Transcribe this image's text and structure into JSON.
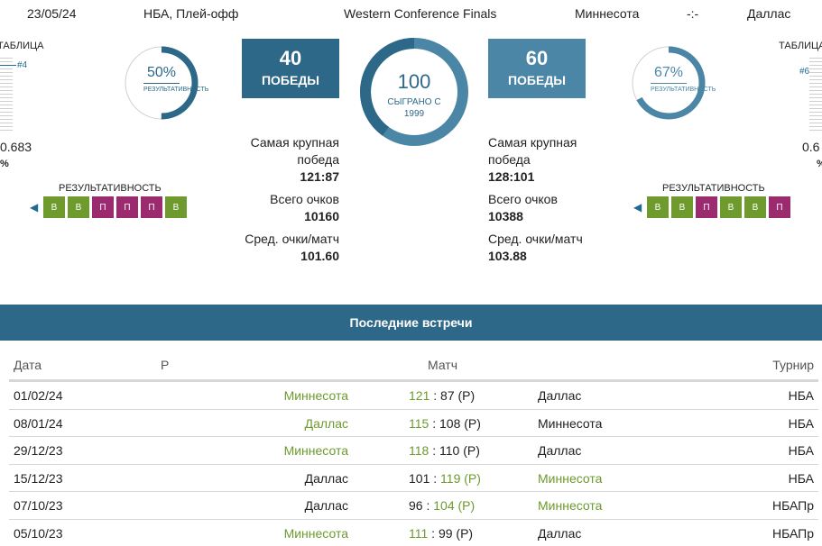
{
  "header": {
    "date": "23/05/24",
    "league": "НБА, Плей-офф",
    "stage": "Western Conference Finals",
    "home_team": "Миннесота",
    "score": "-:-",
    "away_team": "Даллас"
  },
  "left_side": {
    "table_label": "ТАБЛИЦА",
    "rank": "#4",
    "value": "0.683",
    "pct_sign": "%",
    "gauge_value": "50%",
    "gauge_fill": 0.5,
    "gauge_label": "РЕЗУЛЬТАТИВНОСТЬ",
    "form_title": "РЕЗУЛЬТАТИВНОСТЬ",
    "form": [
      "В",
      "В",
      "П",
      "П",
      "П",
      "В"
    ]
  },
  "right_side": {
    "table_label": "ТАБЛИЦА",
    "rank": "#6",
    "value": "0.6",
    "pct_sign": "%",
    "gauge_value": "67%",
    "gauge_fill": 0.67,
    "gauge_label": "РЕЗУЛЬТАТИВНОСТЬ",
    "form_title": "РЕЗУЛЬТАТИВНОСТЬ",
    "form": [
      "В",
      "В",
      "П",
      "В",
      "В",
      "П"
    ]
  },
  "center": {
    "home_wins": "40",
    "home_wins_label": "ПОБЕДЫ",
    "away_wins": "60",
    "away_wins_label": "ПОБЕДЫ",
    "played": "100",
    "played_label_1": "СЫГРАНО С",
    "played_label_2": "1999",
    "played_home_share": 0.4
  },
  "stats_home": {
    "biggest_win_label_1": "Самая крупная",
    "biggest_win_label_2": "победа",
    "biggest_win": "121:87",
    "total_points_label": "Всего очков",
    "total_points": "10160",
    "avg_points_label": "Сред. очки/матч",
    "avg_points": "101.60"
  },
  "stats_away": {
    "biggest_win_label_1": "Самая крупная",
    "biggest_win_label_2": "победа",
    "biggest_win": "128:101",
    "total_points_label": "Всего очков",
    "total_points": "10388",
    "avg_points_label": "Сред. очки/матч",
    "avg_points": "103.88"
  },
  "recent": {
    "title": "Последние встречи",
    "col_date": "Дата",
    "col_r": "Р",
    "col_match": "Матч",
    "col_tournament": "Турнир",
    "rows": [
      {
        "date": "01/02/24",
        "home": "Миннесота",
        "home_win": true,
        "hs": "121",
        "sep": ":",
        "as": "87 (Р)",
        "away": "Даллас",
        "away_win": false,
        "tour": "НБА"
      },
      {
        "date": "08/01/24",
        "home": "Даллас",
        "home_win": true,
        "hs": "115",
        "sep": ":",
        "as": "108 (Р)",
        "away": "Миннесота",
        "away_win": false,
        "tour": "НБА"
      },
      {
        "date": "29/12/23",
        "home": "Миннесота",
        "home_win": true,
        "hs": "118",
        "sep": ":",
        "as": "110 (Р)",
        "away": "Даллас",
        "away_win": false,
        "tour": "НБА"
      },
      {
        "date": "15/12/23",
        "home": "Даллас",
        "home_win": false,
        "hs": "101",
        "sep": ":",
        "as": "119 (Р)",
        "away": "Миннесота",
        "away_win": true,
        "tour": "НБА"
      },
      {
        "date": "07/10/23",
        "home": "Даллас",
        "home_win": false,
        "hs": "96",
        "sep": ":",
        "as": "104 (Р)",
        "away": "Миннесота",
        "away_win": true,
        "tour": "НБАПр"
      },
      {
        "date": "05/10/23",
        "home": "Миннесота",
        "home_win": true,
        "hs": "111",
        "sep": ":",
        "as": "99 (Р)",
        "away": "Даллас",
        "away_win": false,
        "tour": "НБАПр"
      }
    ]
  },
  "colors": {
    "primary": "#2d6889",
    "box_home": "#2d6889",
    "box_away": "#4b86a6",
    "win": "#6e9a2e",
    "loss": "#9b2a6e"
  }
}
